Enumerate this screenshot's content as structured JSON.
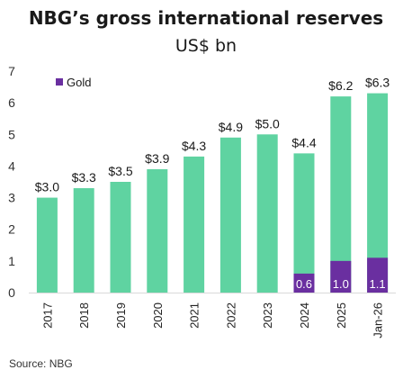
{
  "chart_data": {
    "type": "bar",
    "title": "NBG’s gross international reserves",
    "subtitle": "US$ bn",
    "categories": [
      "2017",
      "2018",
      "2019",
      "2020",
      "2021",
      "2022",
      "2023",
      "2024",
      "2025",
      "Jan-26"
    ],
    "totals": [
      3.0,
      3.3,
      3.5,
      3.9,
      4.3,
      4.9,
      5.0,
      4.4,
      6.2,
      6.3
    ],
    "total_labels": [
      "$3.0",
      "$3.3",
      "$3.5",
      "$3.9",
      "$4.3",
      "$4.9",
      "$5.0",
      "$4.4",
      "$6.2",
      "$6.3"
    ],
    "series": [
      {
        "name": "Gold",
        "values": [
          null,
          null,
          null,
          null,
          null,
          null,
          null,
          0.6,
          1.0,
          1.1
        ],
        "labels": [
          null,
          null,
          null,
          null,
          null,
          null,
          null,
          "0.6",
          "1.0",
          "1.1"
        ]
      }
    ],
    "ylim": [
      0,
      7
    ],
    "yticks": [
      "0",
      "1",
      "2",
      "3",
      "4",
      "5",
      "6",
      "7"
    ],
    "legend_position": "top-left",
    "colors": {
      "total": "#5fd3a1",
      "gold": "#6a2fa0"
    }
  },
  "source": "Source: NBG"
}
